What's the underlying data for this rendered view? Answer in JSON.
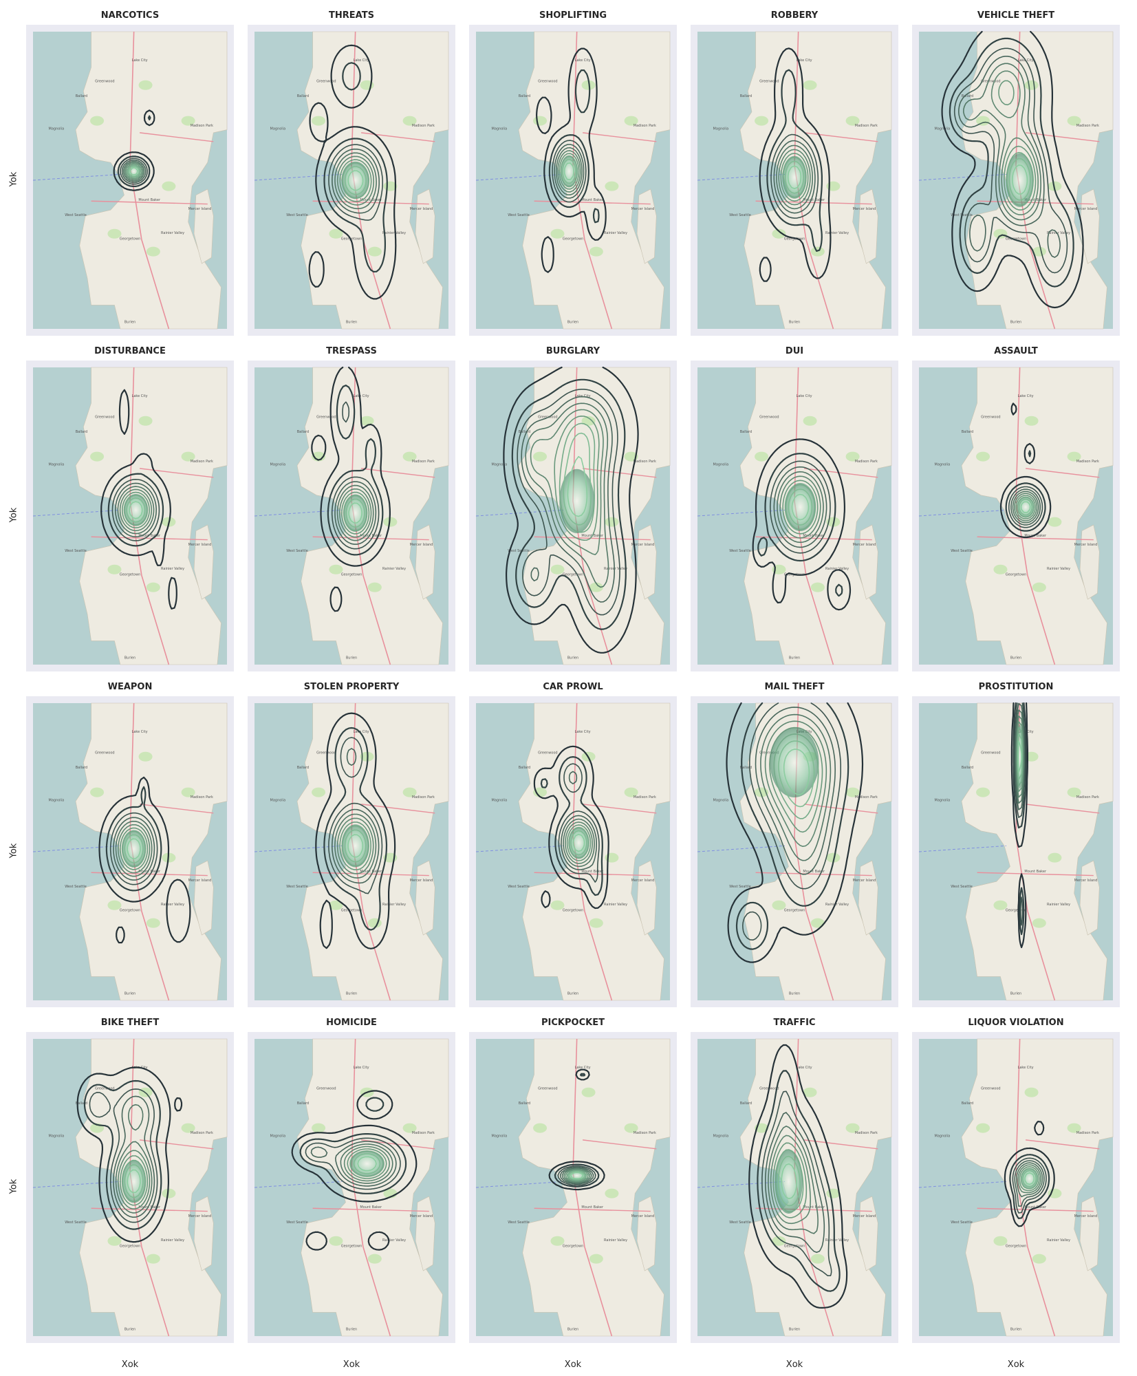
{
  "figure": {
    "x_axis_label": "Xok",
    "y_axis_label": "Yok"
  },
  "map_labels": [
    "Lake City",
    "Greenwood",
    "Ballard",
    "Magnolia",
    "Madison Park",
    "Mercer Island",
    "Rainier Valley",
    "West Seattle",
    "Georgetown",
    "Burien",
    "Mount Baker"
  ],
  "chart_data": [
    {
      "type": "contour",
      "title": "NARCOTICS",
      "peaks": [
        {
          "x": 0.52,
          "y": 0.47,
          "amp": 1.0,
          "sx": 0.04,
          "sy": 0.025
        },
        {
          "x": 0.6,
          "y": 0.29,
          "amp": 0.15,
          "sx": 0.015,
          "sy": 0.015
        }
      ]
    },
    {
      "type": "contour",
      "title": "THREATS",
      "peaks": [
        {
          "x": 0.52,
          "y": 0.5,
          "amp": 1.0,
          "sx": 0.08,
          "sy": 0.07
        },
        {
          "x": 0.5,
          "y": 0.15,
          "amp": 0.18,
          "sx": 0.06,
          "sy": 0.06
        },
        {
          "x": 0.33,
          "y": 0.3,
          "amp": 0.12,
          "sx": 0.03,
          "sy": 0.04
        },
        {
          "x": 0.62,
          "y": 0.72,
          "amp": 0.2,
          "sx": 0.06,
          "sy": 0.1
        },
        {
          "x": 0.32,
          "y": 0.8,
          "amp": 0.12,
          "sx": 0.025,
          "sy": 0.04
        }
      ]
    },
    {
      "type": "contour",
      "title": "SHOPLIFTING",
      "peaks": [
        {
          "x": 0.48,
          "y": 0.47,
          "amp": 1.0,
          "sx": 0.05,
          "sy": 0.06
        },
        {
          "x": 0.55,
          "y": 0.2,
          "amp": 0.2,
          "sx": 0.04,
          "sy": 0.08
        },
        {
          "x": 0.35,
          "y": 0.28,
          "amp": 0.12,
          "sx": 0.025,
          "sy": 0.04
        },
        {
          "x": 0.37,
          "y": 0.75,
          "amp": 0.12,
          "sx": 0.02,
          "sy": 0.04
        },
        {
          "x": 0.62,
          "y": 0.62,
          "amp": 0.15,
          "sx": 0.03,
          "sy": 0.05
        }
      ]
    },
    {
      "type": "contour",
      "title": "ROBBERY",
      "peaks": [
        {
          "x": 0.5,
          "y": 0.49,
          "amp": 1.0,
          "sx": 0.07,
          "sy": 0.08
        },
        {
          "x": 0.47,
          "y": 0.2,
          "amp": 0.2,
          "sx": 0.04,
          "sy": 0.08
        },
        {
          "x": 0.62,
          "y": 0.7,
          "amp": 0.15,
          "sx": 0.04,
          "sy": 0.08
        },
        {
          "x": 0.35,
          "y": 0.8,
          "amp": 0.1,
          "sx": 0.02,
          "sy": 0.03
        }
      ]
    },
    {
      "type": "contour",
      "title": "VEHICLE THEFT",
      "peaks": [
        {
          "x": 0.52,
          "y": 0.5,
          "amp": 1.0,
          "sx": 0.08,
          "sy": 0.1
        },
        {
          "x": 0.45,
          "y": 0.2,
          "amp": 0.65,
          "sx": 0.1,
          "sy": 0.1
        },
        {
          "x": 0.25,
          "y": 0.27,
          "amp": 0.4,
          "sx": 0.06,
          "sy": 0.06
        },
        {
          "x": 0.3,
          "y": 0.68,
          "amp": 0.4,
          "sx": 0.06,
          "sy": 0.09
        },
        {
          "x": 0.7,
          "y": 0.72,
          "amp": 0.35,
          "sx": 0.07,
          "sy": 0.1
        }
      ]
    },
    {
      "type": "contour",
      "title": "DISTURBANCE",
      "peaks": [
        {
          "x": 0.53,
          "y": 0.48,
          "amp": 1.0,
          "sx": 0.07,
          "sy": 0.06
        },
        {
          "x": 0.47,
          "y": 0.15,
          "amp": 0.12,
          "sx": 0.015,
          "sy": 0.05
        },
        {
          "x": 0.57,
          "y": 0.32,
          "amp": 0.1,
          "sx": 0.025,
          "sy": 0.02
        },
        {
          "x": 0.65,
          "y": 0.62,
          "amp": 0.1,
          "sx": 0.015,
          "sy": 0.035
        },
        {
          "x": 0.72,
          "y": 0.76,
          "amp": 0.1,
          "sx": 0.015,
          "sy": 0.04
        }
      ]
    },
    {
      "type": "contour",
      "title": "TRESPASS",
      "peaks": [
        {
          "x": 0.52,
          "y": 0.49,
          "amp": 1.0,
          "sx": 0.07,
          "sy": 0.07
        },
        {
          "x": 0.47,
          "y": 0.15,
          "amp": 0.25,
          "sx": 0.04,
          "sy": 0.08
        },
        {
          "x": 0.6,
          "y": 0.28,
          "amp": 0.18,
          "sx": 0.03,
          "sy": 0.05
        },
        {
          "x": 0.33,
          "y": 0.27,
          "amp": 0.1,
          "sx": 0.025,
          "sy": 0.03
        },
        {
          "x": 0.42,
          "y": 0.78,
          "amp": 0.1,
          "sx": 0.02,
          "sy": 0.03
        }
      ]
    },
    {
      "type": "contour",
      "title": "BURGLARY",
      "peaks": [
        {
          "x": 0.52,
          "y": 0.45,
          "amp": 1.0,
          "sx": 0.1,
          "sy": 0.12
        },
        {
          "x": 0.55,
          "y": 0.22,
          "amp": 0.7,
          "sx": 0.12,
          "sy": 0.1
        },
        {
          "x": 0.3,
          "y": 0.3,
          "amp": 0.5,
          "sx": 0.07,
          "sy": 0.1
        },
        {
          "x": 0.65,
          "y": 0.7,
          "amp": 0.45,
          "sx": 0.08,
          "sy": 0.12
        },
        {
          "x": 0.3,
          "y": 0.7,
          "amp": 0.35,
          "sx": 0.07,
          "sy": 0.08
        }
      ]
    },
    {
      "type": "contour",
      "title": "DUI",
      "peaks": [
        {
          "x": 0.53,
          "y": 0.47,
          "amp": 1.0,
          "sx": 0.09,
          "sy": 0.09
        },
        {
          "x": 0.33,
          "y": 0.61,
          "amp": 0.15,
          "sx": 0.025,
          "sy": 0.035
        },
        {
          "x": 0.73,
          "y": 0.75,
          "amp": 0.15,
          "sx": 0.035,
          "sy": 0.04
        },
        {
          "x": 0.42,
          "y": 0.74,
          "amp": 0.12,
          "sx": 0.02,
          "sy": 0.035
        }
      ]
    },
    {
      "type": "contour",
      "title": "ASSAULT",
      "peaks": [
        {
          "x": 0.55,
          "y": 0.47,
          "amp": 1.0,
          "sx": 0.05,
          "sy": 0.04
        },
        {
          "x": 0.57,
          "y": 0.29,
          "amp": 0.15,
          "sx": 0.015,
          "sy": 0.02
        },
        {
          "x": 0.49,
          "y": 0.14,
          "amp": 0.1,
          "sx": 0.008,
          "sy": 0.015
        }
      ]
    },
    {
      "type": "contour",
      "title": "WEAPON",
      "peaks": [
        {
          "x": 0.52,
          "y": 0.49,
          "amp": 1.0,
          "sx": 0.07,
          "sy": 0.07
        },
        {
          "x": 0.57,
          "y": 0.3,
          "amp": 0.15,
          "sx": 0.015,
          "sy": 0.03
        },
        {
          "x": 0.75,
          "y": 0.7,
          "amp": 0.12,
          "sx": 0.04,
          "sy": 0.07
        },
        {
          "x": 0.45,
          "y": 0.78,
          "amp": 0.1,
          "sx": 0.015,
          "sy": 0.02
        }
      ]
    },
    {
      "type": "contour",
      "title": "STOLEN PROPERTY",
      "peaks": [
        {
          "x": 0.52,
          "y": 0.48,
          "amp": 1.0,
          "sx": 0.08,
          "sy": 0.08
        },
        {
          "x": 0.5,
          "y": 0.18,
          "amp": 0.35,
          "sx": 0.06,
          "sy": 0.07
        },
        {
          "x": 0.6,
          "y": 0.7,
          "amp": 0.2,
          "sx": 0.05,
          "sy": 0.07
        },
        {
          "x": 0.37,
          "y": 0.75,
          "amp": 0.12,
          "sx": 0.02,
          "sy": 0.05
        }
      ]
    },
    {
      "type": "contour",
      "title": "CAR PROWL",
      "peaks": [
        {
          "x": 0.53,
          "y": 0.47,
          "amp": 1.0,
          "sx": 0.06,
          "sy": 0.06
        },
        {
          "x": 0.5,
          "y": 0.25,
          "amp": 0.35,
          "sx": 0.05,
          "sy": 0.05
        },
        {
          "x": 0.35,
          "y": 0.27,
          "amp": 0.15,
          "sx": 0.03,
          "sy": 0.03
        },
        {
          "x": 0.62,
          "y": 0.6,
          "amp": 0.2,
          "sx": 0.03,
          "sy": 0.05
        },
        {
          "x": 0.36,
          "y": 0.66,
          "amp": 0.1,
          "sx": 0.015,
          "sy": 0.02
        }
      ]
    },
    {
      "type": "contour",
      "title": "MAIL THEFT",
      "peaks": [
        {
          "x": 0.5,
          "y": 0.2,
          "amp": 1.0,
          "sx": 0.14,
          "sy": 0.13
        },
        {
          "x": 0.55,
          "y": 0.45,
          "amp": 0.5,
          "sx": 0.1,
          "sy": 0.15
        },
        {
          "x": 0.28,
          "y": 0.75,
          "amp": 0.35,
          "sx": 0.06,
          "sy": 0.06
        }
      ]
    },
    {
      "type": "contour",
      "title": "PROSTITUTION",
      "peaks": [
        {
          "x": 0.52,
          "y": 0.18,
          "amp": 1.0,
          "sx": 0.015,
          "sy": 0.12
        },
        {
          "x": 0.53,
          "y": 0.7,
          "amp": 0.3,
          "sx": 0.008,
          "sy": 0.06
        }
      ]
    },
    {
      "type": "contour",
      "title": "BIKE THEFT",
      "peaks": [
        {
          "x": 0.52,
          "y": 0.48,
          "amp": 1.0,
          "sx": 0.07,
          "sy": 0.08
        },
        {
          "x": 0.53,
          "y": 0.25,
          "amp": 0.45,
          "sx": 0.08,
          "sy": 0.07
        },
        {
          "x": 0.33,
          "y": 0.22,
          "amp": 0.3,
          "sx": 0.05,
          "sy": 0.05
        },
        {
          "x": 0.75,
          "y": 0.22,
          "amp": 0.1,
          "sx": 0.01,
          "sy": 0.015
        }
      ]
    },
    {
      "type": "contour",
      "title": "HOMICIDE",
      "peaks": [
        {
          "x": 0.58,
          "y": 0.42,
          "amp": 1.0,
          "sx": 0.1,
          "sy": 0.05
        },
        {
          "x": 0.32,
          "y": 0.38,
          "amp": 0.35,
          "sx": 0.06,
          "sy": 0.03
        },
        {
          "x": 0.62,
          "y": 0.22,
          "amp": 0.2,
          "sx": 0.05,
          "sy": 0.025
        },
        {
          "x": 0.32,
          "y": 0.68,
          "amp": 0.12,
          "sx": 0.035,
          "sy": 0.02
        },
        {
          "x": 0.64,
          "y": 0.68,
          "amp": 0.12,
          "sx": 0.035,
          "sy": 0.02
        }
      ]
    },
    {
      "type": "contour",
      "title": "PICKPOCKET",
      "peaks": [
        {
          "x": 0.52,
          "y": 0.46,
          "amp": 1.0,
          "sx": 0.055,
          "sy": 0.018
        },
        {
          "x": 0.55,
          "y": 0.12,
          "amp": 0.15,
          "sx": 0.02,
          "sy": 0.01
        }
      ]
    },
    {
      "type": "contour",
      "title": "TRAFFIC",
      "peaks": [
        {
          "x": 0.47,
          "y": 0.48,
          "amp": 1.0,
          "sx": 0.08,
          "sy": 0.12
        },
        {
          "x": 0.62,
          "y": 0.65,
          "amp": 0.35,
          "sx": 0.06,
          "sy": 0.12
        },
        {
          "x": 0.45,
          "y": 0.2,
          "amp": 0.2,
          "sx": 0.04,
          "sy": 0.1
        },
        {
          "x": 0.7,
          "y": 0.8,
          "amp": 0.15,
          "sx": 0.04,
          "sy": 0.05
        }
      ]
    },
    {
      "type": "contour",
      "title": "LIQUOR VIOLATION",
      "peaks": [
        {
          "x": 0.57,
          "y": 0.47,
          "amp": 1.0,
          "sx": 0.05,
          "sy": 0.04
        },
        {
          "x": 0.62,
          "y": 0.3,
          "amp": 0.12,
          "sx": 0.015,
          "sy": 0.015
        },
        {
          "x": 0.52,
          "y": 0.56,
          "amp": 0.3,
          "sx": 0.02,
          "sy": 0.035
        }
      ]
    }
  ]
}
